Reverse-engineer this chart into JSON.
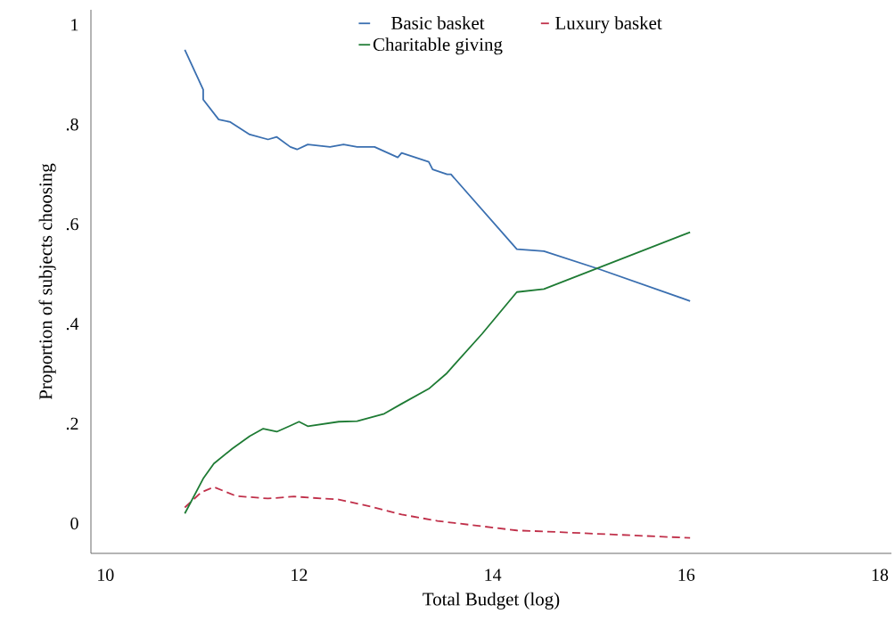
{
  "chart_data": {
    "type": "line",
    "xlabel": "Total Budget (log)",
    "ylabel": "Proportion of subjects choosing",
    "xlim": [
      9.85,
      18.12
    ],
    "ylim": [
      -0.06,
      1.03
    ],
    "xticks": [
      10,
      12,
      14,
      16,
      18
    ],
    "yticks": [
      0,
      {
        "value": 0.2,
        "label": ".2"
      },
      {
        "value": 0.4,
        "label": ".4"
      },
      {
        "value": 0.6,
        "label": ".6"
      },
      {
        "value": 0.8,
        "label": ".8"
      },
      1
    ],
    "legend": "top right",
    "grid": false,
    "series": [
      {
        "name": "Basic basket",
        "color": "#3a6fb0",
        "line_style": "solid",
        "x": [
          10.82,
          11.01,
          11.01,
          11.17,
          11.29,
          11.49,
          11.68,
          11.77,
          11.91,
          11.98,
          12.09,
          12.32,
          12.46,
          12.6,
          12.78,
          13.02,
          13.06,
          13.34,
          13.38,
          13.53,
          13.57,
          14.25,
          14.53,
          15.1,
          16.04
        ],
        "values": [
          0.95,
          0.87,
          0.85,
          0.81,
          0.805,
          0.78,
          0.77,
          0.775,
          0.755,
          0.75,
          0.76,
          0.755,
          0.76,
          0.755,
          0.755,
          0.734,
          0.743,
          0.725,
          0.71,
          0.7,
          0.7,
          0.55,
          0.546,
          0.51,
          0.446
        ]
      },
      {
        "name": "Luxury basket",
        "color": "#c0304a",
        "line_style": "dashed",
        "x": [
          10.82,
          10.99,
          11.12,
          11.35,
          11.68,
          11.95,
          12.23,
          12.41,
          12.78,
          13.06,
          13.43,
          14.25,
          14.53,
          16.04
        ],
        "values": [
          0.032,
          0.0625,
          0.073,
          0.055,
          0.05,
          0.054,
          0.05,
          0.048,
          0.032,
          0.018,
          0.005,
          -0.014,
          -0.016,
          -0.029
        ]
      },
      {
        "name": "Charitable giving",
        "color": "#1e7b34",
        "line_style": "solid",
        "x": [
          10.82,
          11.01,
          11.12,
          11.31,
          11.49,
          11.63,
          11.77,
          11.91,
          12.0,
          12.09,
          12.41,
          12.6,
          12.88,
          13.06,
          13.34,
          13.52,
          13.89,
          14.25,
          14.53,
          16.04
        ],
        "values": [
          0.02,
          0.09,
          0.12,
          0.15,
          0.175,
          0.19,
          0.184,
          0.196,
          0.204,
          0.195,
          0.204,
          0.205,
          0.22,
          0.24,
          0.27,
          0.3,
          0.38,
          0.464,
          0.47,
          0.584
        ]
      }
    ]
  }
}
